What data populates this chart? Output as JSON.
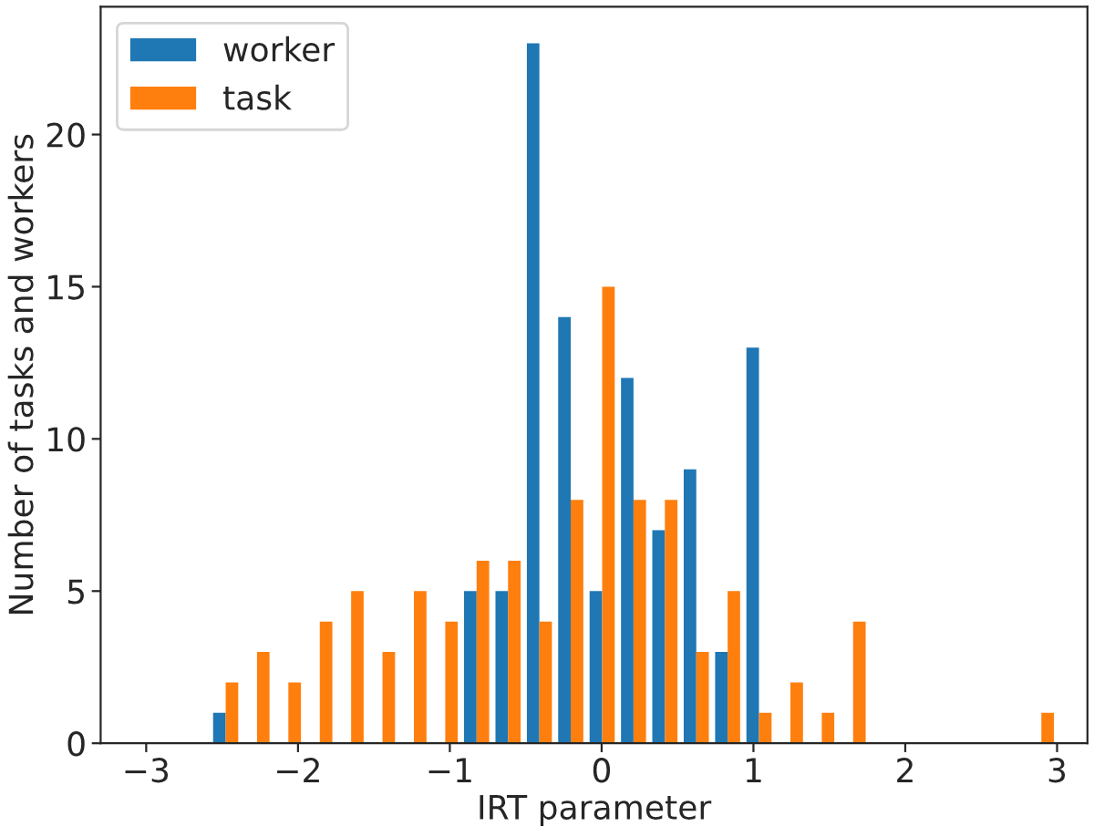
{
  "chart_data": {
    "type": "histogram",
    "xlabel": "IRT parameter",
    "ylabel": "Number of tasks and workers",
    "bins": [
      -2.58,
      -2.373,
      -2.167,
      -1.96,
      -1.753,
      -1.547,
      -1.34,
      -1.133,
      -0.927,
      -0.72,
      -0.513,
      -0.307,
      -0.1,
      0.107,
      0.313,
      0.52,
      0.727,
      0.933,
      1.14,
      1.347,
      1.553,
      1.76,
      1.967,
      2.173,
      2.38,
      2.587,
      2.793,
      3.0
    ],
    "series": [
      {
        "name": "worker",
        "color": "#1f77b4",
        "values": [
          1,
          0,
          0,
          0,
          0,
          0,
          0,
          0,
          5,
          5,
          23,
          14,
          5,
          12,
          7,
          9,
          3,
          13,
          0,
          0,
          0,
          0,
          0,
          0,
          0,
          0,
          0
        ]
      },
      {
        "name": "task",
        "color": "#ff7f0e",
        "values": [
          2,
          3,
          2,
          4,
          5,
          3,
          5,
          4,
          6,
          6,
          4,
          8,
          15,
          8,
          8,
          3,
          5,
          1,
          2,
          1,
          4,
          0,
          0,
          0,
          0,
          0,
          1
        ]
      }
    ],
    "xlim": [
      -3.3,
      3.2
    ],
    "ylim": [
      0,
      24.2
    ],
    "xticks": [
      {
        "value": -3,
        "label": "−3"
      },
      {
        "value": -2,
        "label": "−2"
      },
      {
        "value": -1,
        "label": "−1"
      },
      0,
      1,
      2,
      3
    ],
    "yticks": [
      0,
      5,
      10,
      15,
      20
    ],
    "grid": false,
    "legend": "top left"
  }
}
